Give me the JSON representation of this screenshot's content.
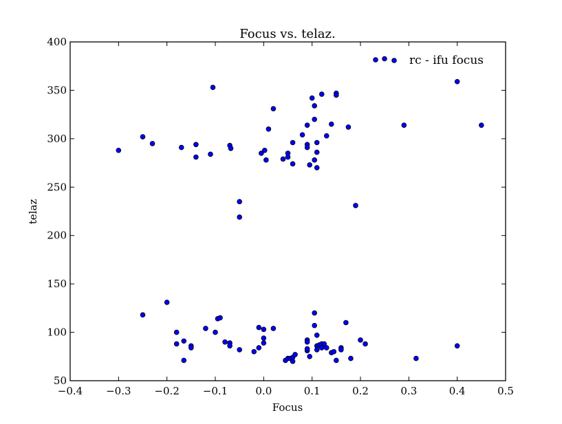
{
  "chart_data": {
    "type": "scatter",
    "title": "Focus vs. telaz.",
    "xlabel": "Focus",
    "ylabel": "telaz",
    "xlim": [
      -0.4,
      0.5
    ],
    "ylim": [
      50,
      400
    ],
    "xticks": [
      -0.4,
      -0.3,
      -0.2,
      -0.1,
      0.0,
      0.1,
      0.2,
      0.3,
      0.4,
      0.5
    ],
    "xtick_labels": [
      "−0.4",
      "−0.3",
      "−0.2",
      "−0.1",
      "0.0",
      "0.1",
      "0.2",
      "0.3",
      "0.4",
      "0.5"
    ],
    "yticks": [
      50,
      100,
      150,
      200,
      250,
      300,
      350,
      400
    ],
    "ytick_labels": [
      "50",
      "100",
      "150",
      "200",
      "250",
      "300",
      "350",
      "400"
    ],
    "grid": false,
    "legend_position": "top-right",
    "marker_color": "#0000ff",
    "marker_edge_color": "#000000",
    "series": [
      {
        "name": "rc - ifu focus",
        "points": [
          [
            -0.3,
            288
          ],
          [
            -0.25,
            302
          ],
          [
            -0.23,
            295
          ],
          [
            -0.17,
            291
          ],
          [
            -0.14,
            294
          ],
          [
            -0.14,
            281
          ],
          [
            -0.11,
            284
          ],
          [
            -0.105,
            353
          ],
          [
            -0.07,
            293
          ],
          [
            -0.068,
            290
          ],
          [
            -0.05,
            235
          ],
          [
            -0.05,
            219
          ],
          [
            -0.005,
            285
          ],
          [
            0.002,
            288
          ],
          [
            0.005,
            278
          ],
          [
            0.01,
            310
          ],
          [
            0.02,
            331
          ],
          [
            0.04,
            279
          ],
          [
            0.05,
            285
          ],
          [
            0.05,
            281
          ],
          [
            0.06,
            296
          ],
          [
            0.06,
            274
          ],
          [
            0.08,
            304
          ],
          [
            0.09,
            314
          ],
          [
            0.09,
            294
          ],
          [
            0.09,
            291
          ],
          [
            0.095,
            273
          ],
          [
            0.1,
            342
          ],
          [
            0.105,
            334
          ],
          [
            0.105,
            320
          ],
          [
            0.105,
            278
          ],
          [
            0.11,
            296
          ],
          [
            0.11,
            286
          ],
          [
            0.11,
            270
          ],
          [
            0.12,
            346
          ],
          [
            0.13,
            303
          ],
          [
            0.14,
            315
          ],
          [
            0.15,
            347
          ],
          [
            0.15,
            345
          ],
          [
            0.175,
            312
          ],
          [
            0.19,
            231
          ],
          [
            0.29,
            314
          ],
          [
            0.4,
            359
          ],
          [
            0.45,
            314
          ],
          [
            -0.25,
            118
          ],
          [
            -0.2,
            131
          ],
          [
            -0.18,
            100
          ],
          [
            -0.18,
            88
          ],
          [
            -0.165,
            91
          ],
          [
            -0.165,
            71
          ],
          [
            -0.15,
            86
          ],
          [
            -0.15,
            84
          ],
          [
            -0.12,
            104
          ],
          [
            -0.1,
            100
          ],
          [
            -0.095,
            114
          ],
          [
            -0.09,
            115
          ],
          [
            -0.08,
            90
          ],
          [
            -0.07,
            89
          ],
          [
            -0.07,
            86
          ],
          [
            -0.05,
            82
          ],
          [
            -0.02,
            80
          ],
          [
            -0.01,
            105
          ],
          [
            -0.01,
            84
          ],
          [
            0.0,
            103
          ],
          [
            0.0,
            94
          ],
          [
            0.0,
            89
          ],
          [
            0.02,
            104
          ],
          [
            0.045,
            71
          ],
          [
            0.05,
            73
          ],
          [
            0.055,
            73
          ],
          [
            0.06,
            70
          ],
          [
            0.06,
            74
          ],
          [
            0.065,
            77
          ],
          [
            0.09,
            81
          ],
          [
            0.09,
            83
          ],
          [
            0.09,
            92
          ],
          [
            0.09,
            90
          ],
          [
            0.095,
            75
          ],
          [
            0.105,
            120
          ],
          [
            0.105,
            107
          ],
          [
            0.11,
            97
          ],
          [
            0.11,
            86
          ],
          [
            0.11,
            82
          ],
          [
            0.115,
            87
          ],
          [
            0.12,
            88
          ],
          [
            0.12,
            84
          ],
          [
            0.125,
            88
          ],
          [
            0.13,
            84
          ],
          [
            0.14,
            79
          ],
          [
            0.145,
            80
          ],
          [
            0.15,
            71
          ],
          [
            0.16,
            84
          ],
          [
            0.16,
            82
          ],
          [
            0.17,
            110
          ],
          [
            0.18,
            73
          ],
          [
            0.2,
            92
          ],
          [
            0.21,
            88
          ],
          [
            0.315,
            73
          ],
          [
            0.4,
            86
          ]
        ]
      }
    ]
  }
}
